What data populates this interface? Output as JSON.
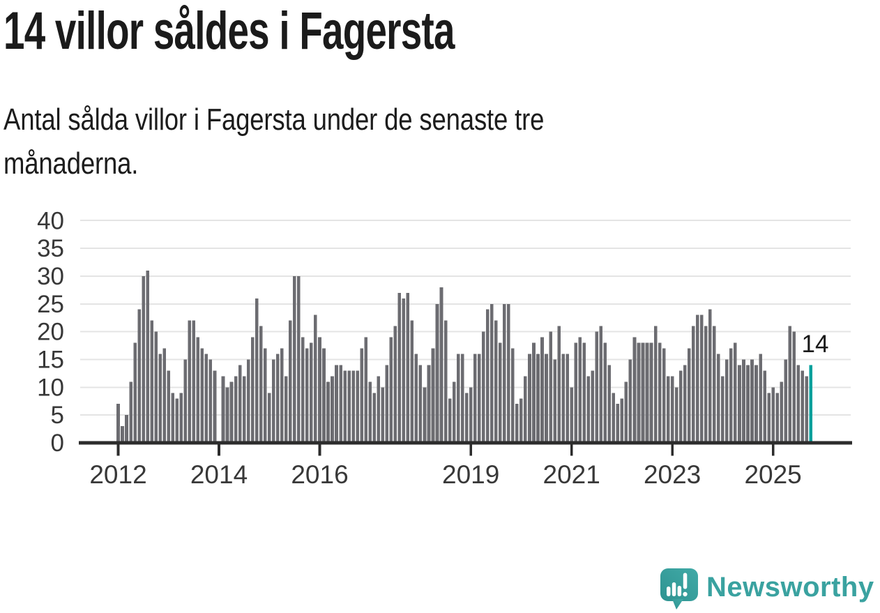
{
  "header": {
    "title": "14 villor såldes i Fagersta",
    "subtitle_lines": [
      "Antal sålda villor i Fagersta under de senaste tre",
      "månaderna."
    ]
  },
  "chart_data": {
    "type": "bar",
    "title": "14 villor såldes i Fagersta",
    "description": "Antal sålda villor i Fagersta under de senaste tre månaderna.",
    "x_unit": "month",
    "x_start": "2012-01",
    "values": [
      7,
      3,
      5,
      11,
      18,
      24,
      30,
      31,
      22,
      20,
      16,
      17,
      13,
      9,
      8,
      9,
      15,
      22,
      22,
      19,
      17,
      16,
      15,
      13,
      null,
      12,
      10,
      11,
      12,
      14,
      12,
      15,
      19,
      26,
      21,
      17,
      9,
      15,
      16,
      17,
      12,
      22,
      30,
      30,
      19,
      17,
      18,
      23,
      19,
      17,
      11,
      12,
      14,
      14,
      13,
      13,
      13,
      13,
      17,
      19,
      11,
      9,
      12,
      10,
      14,
      19,
      21,
      27,
      26,
      27,
      22,
      16,
      14,
      10,
      14,
      17,
      25,
      28,
      22,
      8,
      11,
      16,
      16,
      9,
      10,
      16,
      16,
      20,
      24,
      25,
      22,
      18,
      25,
      25,
      17,
      7,
      8,
      12,
      16,
      18,
      16,
      19,
      16,
      20,
      15,
      21,
      16,
      16,
      10,
      18,
      19,
      18,
      12,
      13,
      20,
      21,
      18,
      14,
      9,
      7,
      8,
      11,
      15,
      19,
      18,
      18,
      18,
      18,
      21,
      18,
      17,
      12,
      12,
      10,
      13,
      14,
      17,
      21,
      23,
      23,
      21,
      24,
      21,
      16,
      12,
      15,
      17,
      18,
      14,
      15,
      14,
      15,
      14,
      16,
      13,
      9,
      10,
      9,
      11,
      15,
      21,
      20,
      14,
      13,
      12,
      14
    ],
    "highlight_index": 165,
    "highlight_label": "14",
    "y_ticks": [
      0,
      5,
      10,
      15,
      20,
      25,
      30,
      35,
      40
    ],
    "ylim": [
      0,
      40
    ],
    "x_ticks": [
      {
        "label": "2012",
        "index": 0
      },
      {
        "label": "2014",
        "index": 24
      },
      {
        "label": "2016",
        "index": 48
      },
      {
        "label": "2019",
        "index": 84
      },
      {
        "label": "2021",
        "index": 108
      },
      {
        "label": "2023",
        "index": 132
      },
      {
        "label": "2025",
        "index": 156
      }
    ],
    "grid": true,
    "legend": false,
    "colors": {
      "bar": "#6c6c71",
      "highlight": "#00a09c",
      "axis": "#2c2c2c",
      "grid": "#e4e4e4",
      "tick_text": "#383838"
    }
  },
  "annotation": {
    "value_label": "14"
  },
  "footer": {
    "brand": "Newsworthy",
    "brand_color": "#3aa2a0"
  }
}
